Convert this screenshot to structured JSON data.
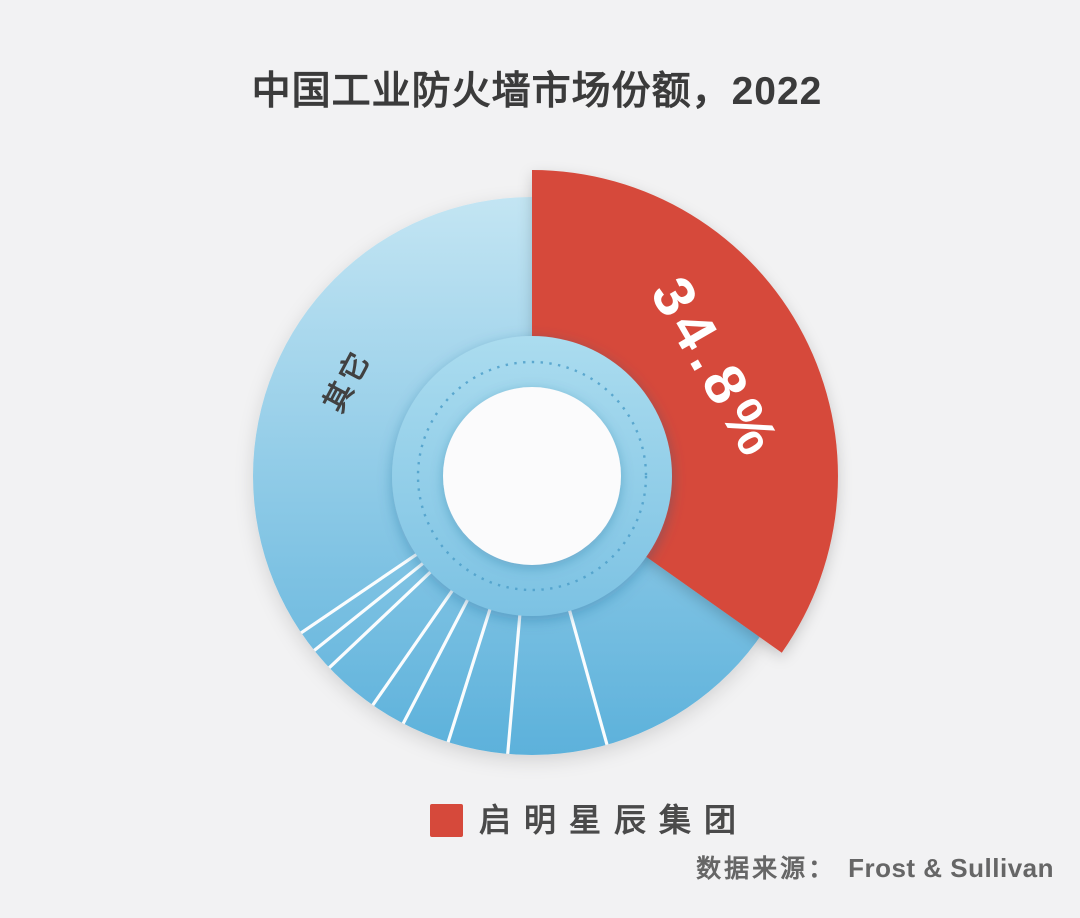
{
  "page": {
    "background": "#F2F2F3"
  },
  "title": {
    "text": "中国工业防火墙市场份额，2022"
  },
  "chart_data": {
    "type": "pie",
    "donut": true,
    "start_angle": "12-oclock",
    "direction": "clockwise",
    "title": "中国工业防火墙市场份额，2022",
    "series": [
      {
        "name": "启明星辰集团",
        "value": 34.8,
        "label": "34.8%",
        "color": "#D6493B"
      },
      {
        "name": "其它",
        "value": 65.2,
        "label": "其它",
        "color_top": "#C3E5F3",
        "color_bottom": "#5CB1DB"
      }
    ],
    "other_subsegment_separator_angles_deg": [
      164.4,
      185.0,
      197.5,
      207.5,
      214.8,
      226.6,
      231.3,
      235.8
    ],
    "legend": {
      "position": "bottom",
      "items": [
        {
          "label": "启明星辰集团",
          "color": "#D6493B"
        }
      ]
    },
    "source_note": "数据来源： Frost & Sullivan"
  },
  "labels": {
    "share": "34.8%",
    "other": "其它"
  },
  "legend": {
    "item": "启明星辰集团"
  },
  "source": {
    "prefix": "数据来源：",
    "name": "Frost & Sullivan"
  },
  "colors": {
    "background": "#F2F2F3",
    "red": "#D6493B",
    "blue_top": "#C3E5F3",
    "blue_bottom": "#5CB1DB",
    "inner_top": "#ABDCEF",
    "inner_bottom": "#7CC2E3",
    "dotted_ring": "#4E9FC9",
    "center": "#FBFBFC",
    "title_text": "#3B3B3B",
    "label_on_red": "#FFFFFF",
    "label_other": "#414141",
    "legend_text": "#4A4A4A",
    "source_text": "#666666"
  }
}
